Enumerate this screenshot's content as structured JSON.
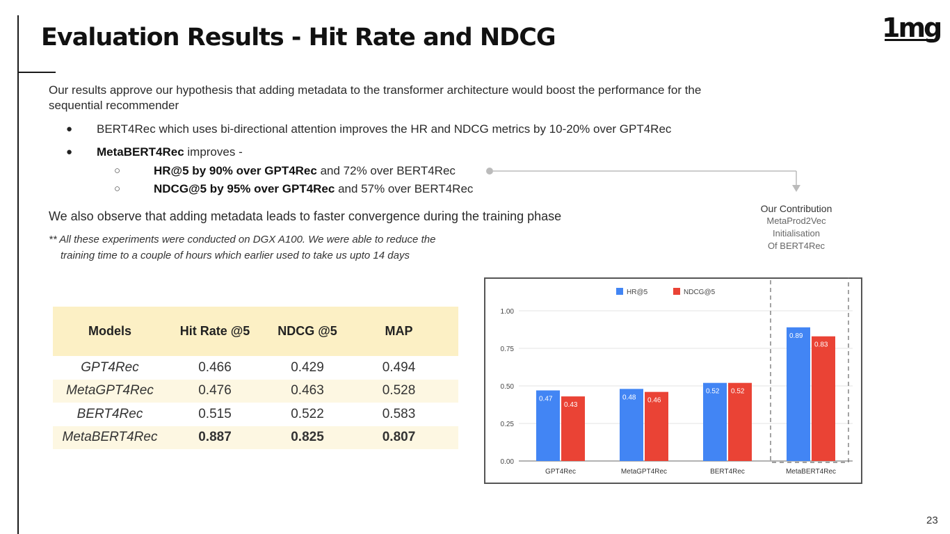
{
  "slide": {
    "title": "Evaluation Results - Hit Rate and NDCG",
    "logo": "1mg",
    "page_number": "23"
  },
  "content": {
    "intro_line1": "Our results approve our hypothesis that adding metadata to the transformer architecture would boost the performance for the",
    "intro_line2": "sequential recommender",
    "bullet1": "BERT4Rec which uses bi-directional attention improves the HR and NDCG metrics by 10-20% over GPT4Rec",
    "bullet2_bold": "MetaBERT4Rec",
    "bullet2_rest": " improves -",
    "sub1_bold": "HR@5 by 90% over GPT4Rec",
    "sub1_rest": " and 72% over BERT4Rec",
    "sub2_bold": "NDCG@5 by 95% over GPT4Rec",
    "sub2_rest": " and 57% over BERT4Rec",
    "convergence": "We also observe that adding metadata leads to faster convergence during the training phase",
    "note_line1": "** All these experiments were conducted on DGX A100. We were able to reduce the",
    "note_line2": "training time to a couple of hours which earlier used to take us upto 14 days"
  },
  "contribution": {
    "title": "Our Contribution",
    "line1": "MetaProd2Vec",
    "line2": "Initialisation",
    "line3": "Of BERT4Rec"
  },
  "table": {
    "headers": [
      "Models",
      "Hit Rate @5",
      "NDCG @5",
      "MAP"
    ],
    "rows": [
      [
        "GPT4Rec",
        "0.466",
        "0.429",
        "0.494"
      ],
      [
        "MetaGPT4Rec",
        "0.476",
        "0.463",
        "0.528"
      ],
      [
        "BERT4Rec",
        "0.515",
        "0.522",
        "0.583"
      ],
      [
        "MetaBERT4Rec",
        "0.887",
        "0.825",
        "0.807"
      ]
    ]
  },
  "chart_data": {
    "type": "bar",
    "categories": [
      "GPT4Rec",
      "MetaGPT4Rec",
      "BERT4Rec",
      "MetaBERT4Rec"
    ],
    "series": [
      {
        "name": "HR@5",
        "values": [
          0.47,
          0.48,
          0.52,
          0.89
        ],
        "color": "#4285f4"
      },
      {
        "name": "NDCG@5",
        "values": [
          0.43,
          0.46,
          0.52,
          0.83
        ],
        "color": "#ea4335"
      }
    ],
    "ylim": [
      0,
      1.0
    ],
    "yticks": [
      "0.00",
      "0.25",
      "0.50",
      "0.75",
      "1.00"
    ],
    "grid": true,
    "legend": "top-center",
    "highlighted_category": "MetaBERT4Rec"
  }
}
